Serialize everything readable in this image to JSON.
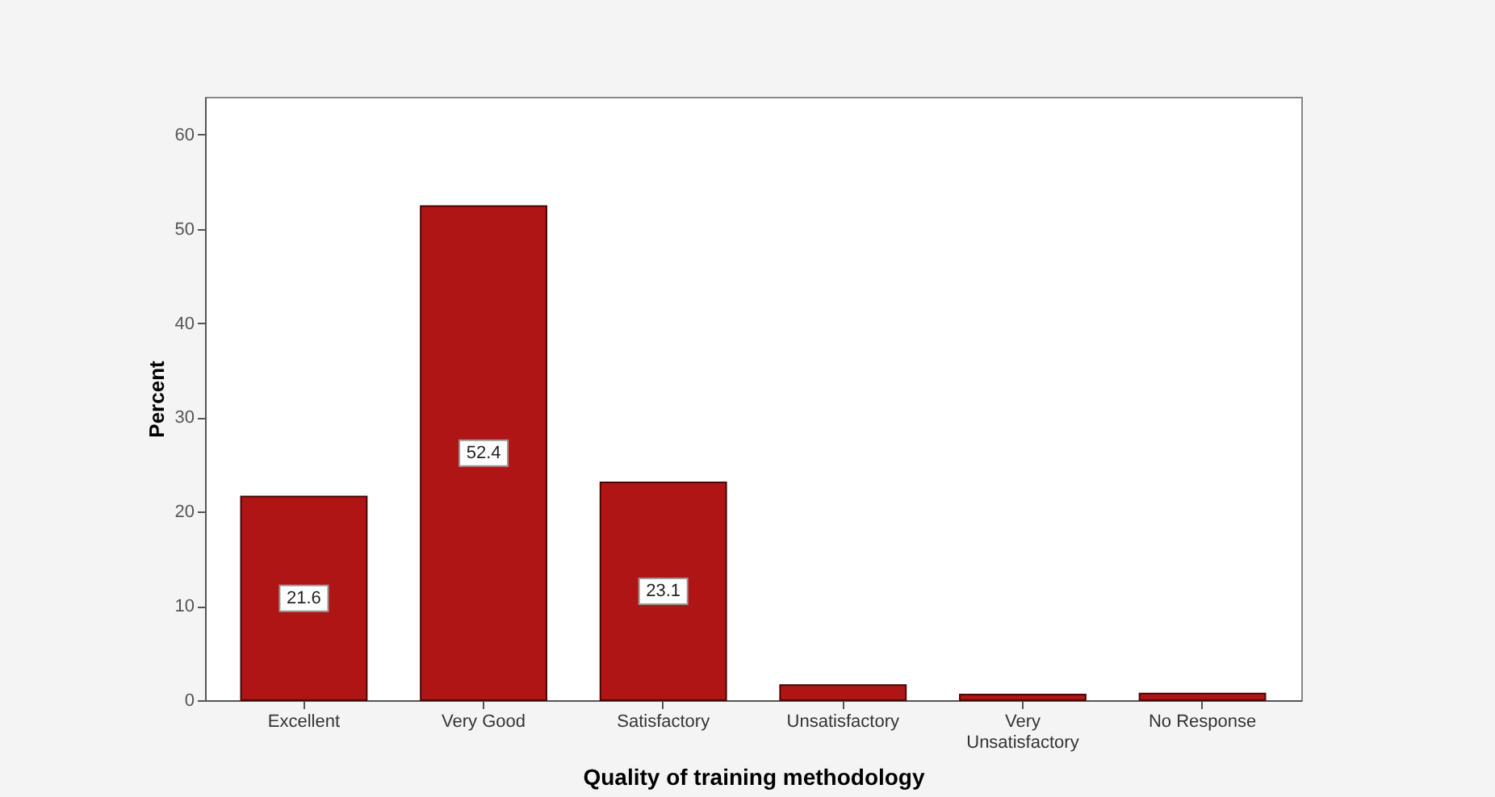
{
  "chart_data": {
    "type": "bar",
    "categories": [
      "Excellent",
      "Very Good",
      "Satisfactory",
      "Unsatisfactory",
      "Very Unsatisfactory",
      "No Response"
    ],
    "values": [
      21.6,
      52.4,
      23.1,
      1.6,
      0.6,
      0.7
    ],
    "value_labels": [
      "21.6",
      "52.4",
      "23.1",
      null,
      null,
      null
    ],
    "color": "#b01515",
    "xlabel": "Quality of training methodology",
    "ylabel": "Percent",
    "ylim": [
      0,
      64
    ],
    "yticks": [
      0,
      10,
      20,
      30,
      40,
      50,
      60
    ],
    "grid": false
  }
}
